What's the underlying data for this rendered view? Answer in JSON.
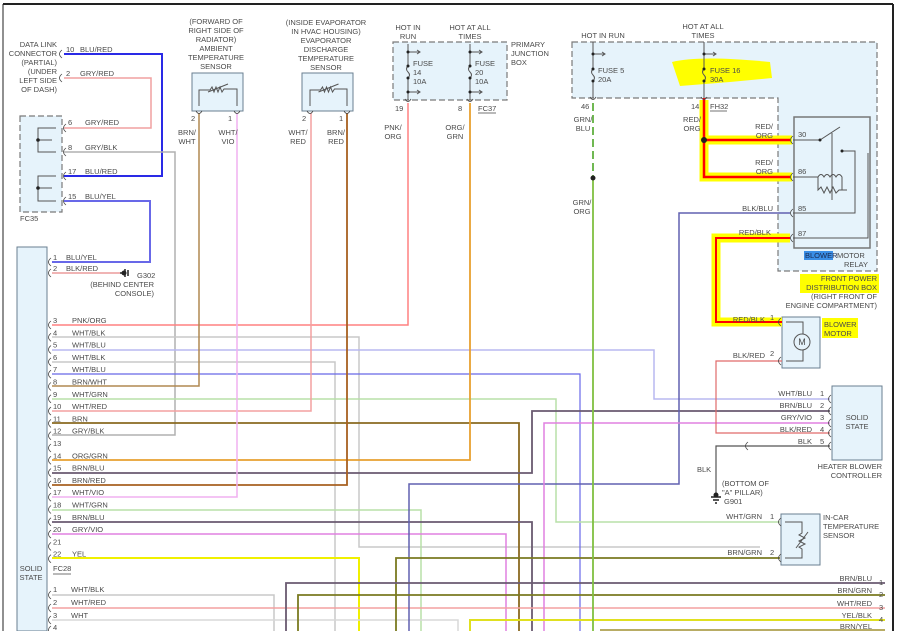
{
  "wire_colors": {
    "BLU/RED": "#2a2ae6",
    "GRY/RED": "#f0a0a0",
    "GRY/BLK": "#b0b0b0",
    "BLU/YEL": "#6868e8",
    "BLK/RED": "#e06a6a",
    "PNK/ORG": "#ff8080",
    "WHT/BLK": "#c8c8c8",
    "WHT/BLU": "#b8b8f0",
    "BRN/WHT": "#b08850",
    "WHT/GRN": "#b8e0a8",
    "WHT/RED": "#f4a0a0",
    "BRN": "#8a6a20",
    "ORG/GRN": "#e8a030",
    "BRN/BLU": "#6a5a70",
    "BRN/RED": "#a86020",
    "WHT/VIO": "#f0b0f0",
    "GRY/VIO": "#e080e0",
    "YEL": "#f0f000",
    "BRN/GRN": "#7a7a20",
    "GRN/BLU": "#60b040",
    "GRN/ORG": "#80c040",
    "RED/ORG": "#ff0000",
    "RED/BLK": "#ff0000",
    "BLK/BLU": "#6060b0",
    "BLK": "#555555",
    "YEL/BLK": "#e0e020",
    "WHT": "#d8d8d8",
    "BRN/YEL": "#a09030"
  },
  "highlight_colors": {
    "yellow": "#ffff00",
    "blue": "#3a8ee6"
  },
  "data_link_connector": {
    "label": [
      "DATA LINK",
      "CONNECTOR",
      "(PARTIAL)",
      "(UNDER",
      "LEFT SIDE",
      "OF DASH)"
    ],
    "pins": [
      {
        "num": "10",
        "wire": "BLU/RED"
      },
      {
        "num": "2",
        "wire": "GRY/RED"
      }
    ]
  },
  "fc35": {
    "name": "FC35",
    "pins": [
      {
        "num": "6",
        "wire": "GRY/RED"
      },
      {
        "num": "8",
        "wire": "GRY/BLK"
      },
      {
        "num": "17",
        "wire": "BLU/RED"
      },
      {
        "num": "15",
        "wire": "BLU/YEL"
      }
    ]
  },
  "ambient_sensor": {
    "label": [
      "(FORWARD OF",
      "RIGHT SIDE OF",
      "RADIATOR)",
      "AMBIENT",
      "TEMPERATURE",
      "SENSOR"
    ],
    "pins": [
      {
        "num": "2",
        "wire": [
          "BRN/",
          "WHT"
        ]
      },
      {
        "num": "1",
        "wire": [
          "WHT/",
          "VIO"
        ]
      }
    ]
  },
  "evaporator_sensor": {
    "label": [
      "(INSIDE EVAPORATOR",
      "IN HVAC HOUSING)",
      "EVAPORATOR",
      "DISCHARGE",
      "TEMPERATURE",
      "SENSOR"
    ],
    "pins": [
      {
        "num": "2",
        "wire": [
          "WHT/",
          "RED"
        ]
      },
      {
        "num": "1",
        "wire": [
          "BRN/",
          "RED"
        ]
      }
    ]
  },
  "primary_junction_box": {
    "label": [
      "PRIMARY",
      "JUNCTION",
      "BOX"
    ],
    "hot_in_run": [
      "HOT IN",
      "RUN"
    ],
    "hot_at_all_times": [
      "HOT AT ALL",
      "TIMES"
    ],
    "fuses": [
      {
        "lines": [
          "FUSE",
          "14",
          "10A"
        ]
      },
      {
        "lines": [
          "FUSE",
          "20",
          "10A"
        ]
      }
    ],
    "connector": "FC37",
    "pins": [
      {
        "num": "19",
        "wire": [
          "PNK/",
          "ORG"
        ]
      },
      {
        "num": "8",
        "wire": [
          "ORG/",
          "GRN"
        ]
      }
    ]
  },
  "front_power_box": {
    "label": [
      "FRONT POWER",
      "DISTRIBUTION BOX",
      "(RIGHT FRONT OF",
      "ENGINE COMPARTMENT)"
    ],
    "hot_in_run": "HOT IN RUN",
    "hot_at_all_times": [
      "HOT AT ALL",
      "TIMES"
    ],
    "fuses": [
      {
        "lines": [
          "FUSE 5",
          "20A"
        ]
      },
      {
        "lines": [
          "FUSE 16",
          "30A"
        ]
      }
    ],
    "connector": "FH32",
    "pins": [
      {
        "num": "46",
        "wire": [
          "GRN/",
          "BLU"
        ]
      },
      {
        "num": "14",
        "wire": [
          "RED/",
          "ORG"
        ]
      }
    ],
    "splice_wire": [
      "GRN/",
      "ORG"
    ]
  },
  "blower_motor_relay": {
    "label_highlight": "BLOWER",
    "label_rest": "MOTOR",
    "label_line2": "RELAY",
    "pins": [
      {
        "num": "30",
        "wire": [
          "RED/",
          "ORG"
        ]
      },
      {
        "num": "86",
        "wire": [
          "RED/",
          "ORG"
        ]
      },
      {
        "num": "85",
        "wire": "BLK/BLU"
      },
      {
        "num": "87",
        "wire": "RED/BLK"
      }
    ]
  },
  "blower_motor": {
    "label": [
      "BLOWER",
      "MOTOR"
    ],
    "symbol": "M",
    "pins": [
      {
        "num": "1",
        "wire": "RED/BLK"
      },
      {
        "num": "2",
        "wire": "BLK/RED"
      }
    ]
  },
  "heater_blower_controller": {
    "label": [
      "HEATER BLOWER",
      "CONTROLLER"
    ],
    "inner": [
      "SOLID",
      "STATE"
    ],
    "pins": [
      {
        "num": "1",
        "wire": "WHT/BLU"
      },
      {
        "num": "2",
        "wire": "BRN/BLU"
      },
      {
        "num": "3",
        "wire": "GRY/VIO"
      },
      {
        "num": "4",
        "wire": "BLK/RED"
      },
      {
        "num": "5",
        "wire": "BLK"
      }
    ]
  },
  "ground_g901": {
    "wire": "BLK",
    "label": [
      "(BOTTOM OF",
      "\"A\" PILLAR)"
    ],
    "name": "G901"
  },
  "ground_g302": {
    "name": "G302",
    "label": [
      "(BEHIND CENTER",
      "CONSOLE)"
    ]
  },
  "in_car_sensor": {
    "label": [
      "IN-CAR",
      "TEMPERATURE",
      "SENSOR"
    ],
    "pins": [
      {
        "num": "1",
        "wire": "WHT/GRN"
      },
      {
        "num": "2",
        "wire": "BRN/GRN"
      }
    ]
  },
  "right_edge_pins": [
    {
      "num": "1",
      "wire": "BRN/BLU"
    },
    {
      "num": "2",
      "wire": "BRN/GRN"
    },
    {
      "num": "3",
      "wire": "WHT/RED"
    },
    {
      "num": "4",
      "wire": "YEL/BLK"
    },
    {
      "num": "",
      "wire": "BRN/YEL"
    }
  ],
  "module": {
    "inner": [
      "SOLID",
      "STATE"
    ],
    "connector_a_pins": [
      {
        "num": "1",
        "wire": "BLU/YEL"
      },
      {
        "num": "2",
        "wire": "BLK/RED"
      },
      {
        "num": "3",
        "wire": "PNK/ORG"
      },
      {
        "num": "4",
        "wire": "WHT/BLK"
      },
      {
        "num": "5",
        "wire": "WHT/BLU"
      },
      {
        "num": "6",
        "wire": "WHT/BLK"
      },
      {
        "num": "7",
        "wire": "WHT/BLU"
      },
      {
        "num": "8",
        "wire": "BRN/WHT"
      },
      {
        "num": "9",
        "wire": "WHT/GRN"
      },
      {
        "num": "10",
        "wire": "WHT/RED"
      },
      {
        "num": "11",
        "wire": "BRN"
      },
      {
        "num": "12",
        "wire": "GRY/BLK"
      },
      {
        "num": "13",
        "wire": ""
      },
      {
        "num": "14",
        "wire": "ORG/GRN"
      },
      {
        "num": "15",
        "wire": "BRN/BLU"
      },
      {
        "num": "16",
        "wire": "BRN/RED"
      },
      {
        "num": "17",
        "wire": "WHT/VIO"
      },
      {
        "num": "18",
        "wire": "WHT/GRN"
      },
      {
        "num": "19",
        "wire": "BRN/BLU"
      },
      {
        "num": "20",
        "wire": "GRY/VIO"
      },
      {
        "num": "21",
        "wire": ""
      },
      {
        "num": "22",
        "wire": "YEL"
      }
    ],
    "connector_b": "FC28",
    "connector_b_pins": [
      {
        "num": "1",
        "wire": "WHT/BLK"
      },
      {
        "num": "2",
        "wire": "WHT/RED"
      },
      {
        "num": "3",
        "wire": "WHT"
      },
      {
        "num": "4",
        "wire": ""
      }
    ]
  }
}
